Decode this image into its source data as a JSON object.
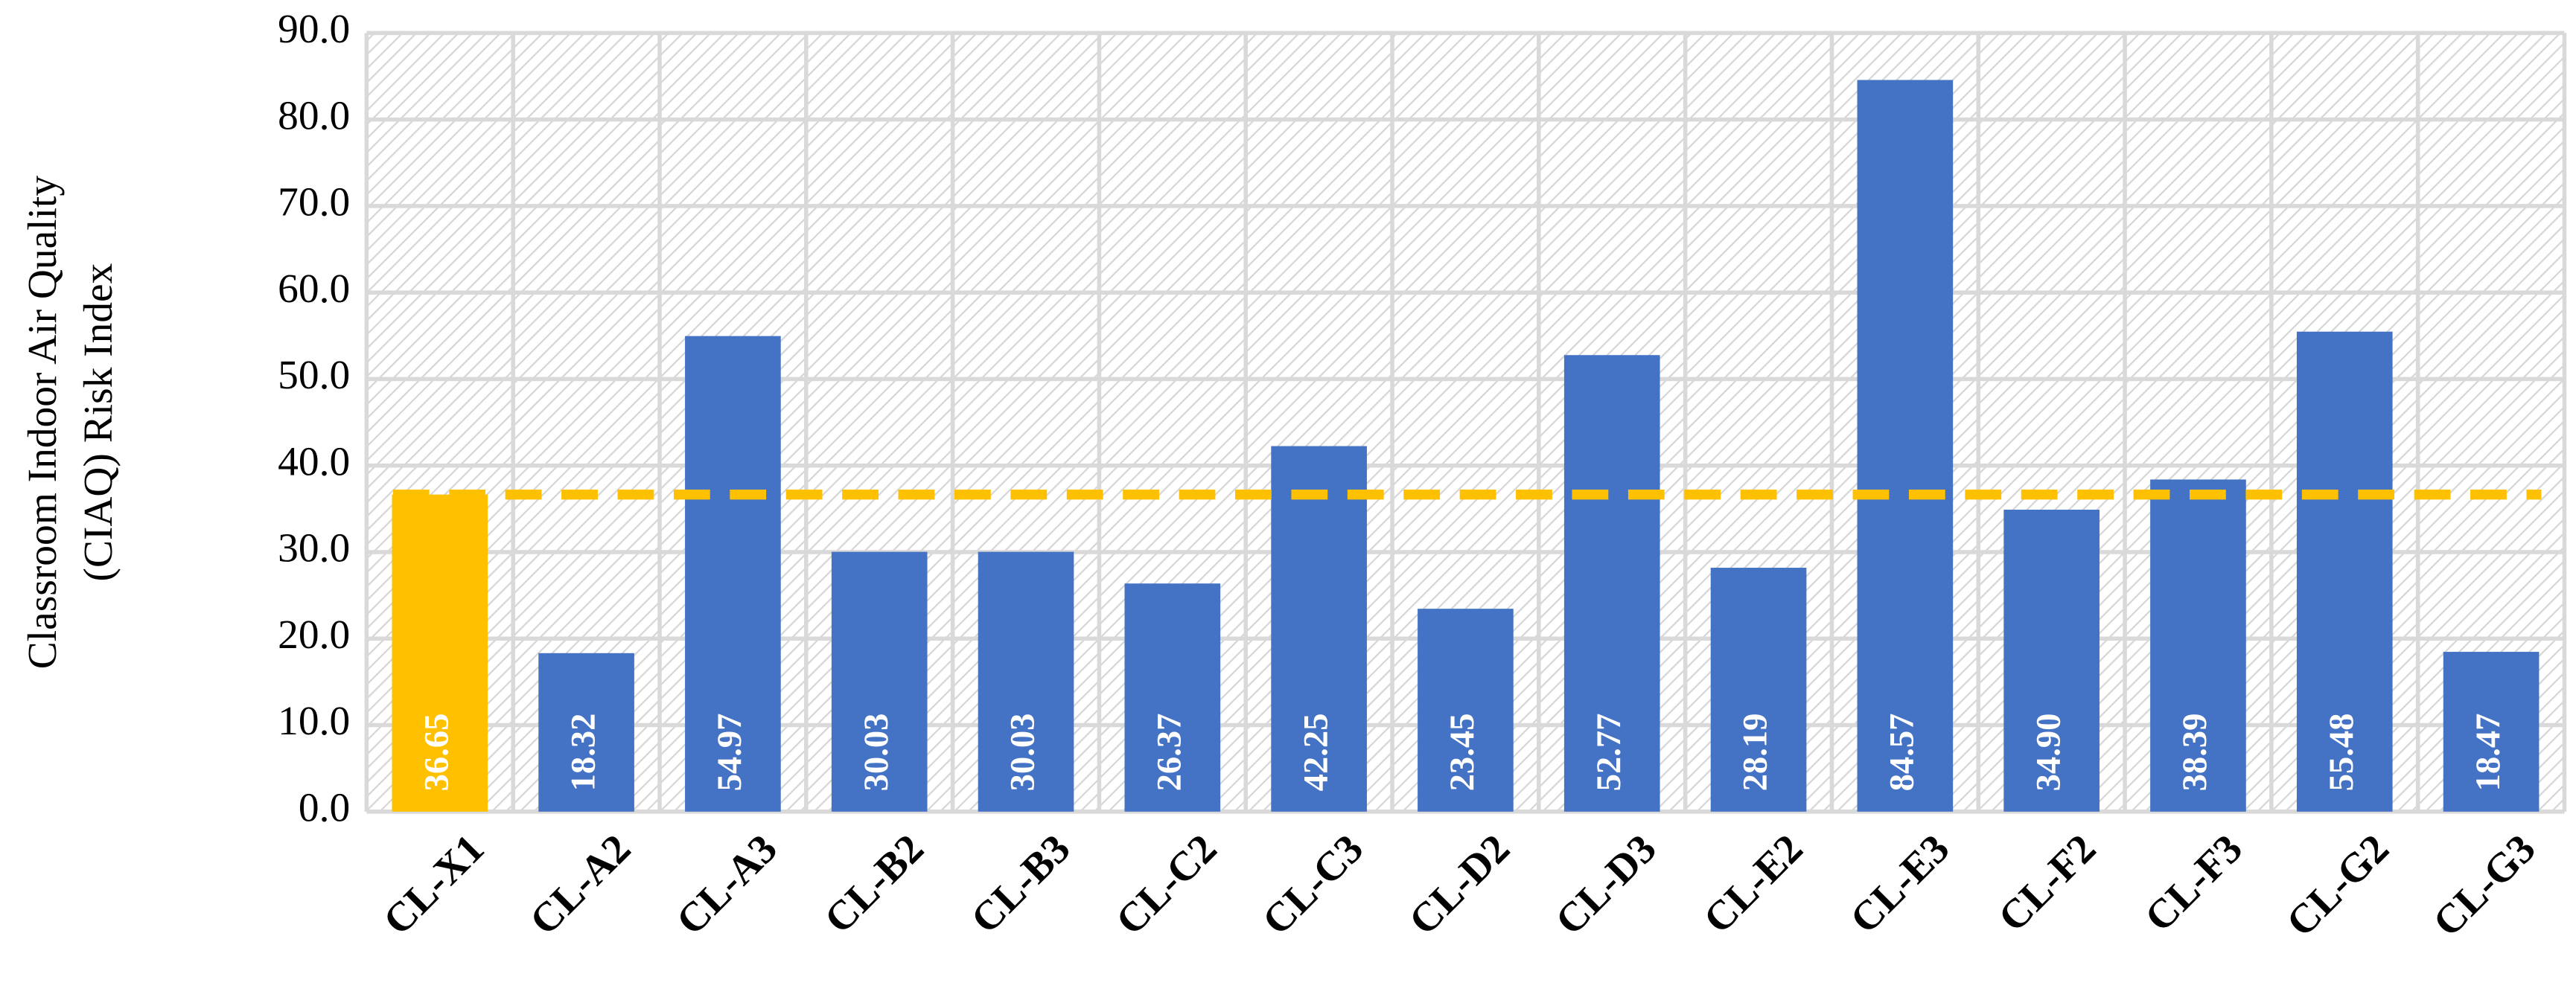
{
  "chart_data": {
    "type": "bar",
    "y_label": [
      "Classroom Indoor Air Quality",
      "(CIAQ) Risk Index"
    ],
    "categories": [
      "CL-X1",
      "CL-A2",
      "CL-A3",
      "CL-B2",
      "CL-B3",
      "CL-C2",
      "CL-C3",
      "CL-D2",
      "CL-D3",
      "CL-E2",
      "CL-E3",
      "CL-F2",
      "CL-F3",
      "CL-G2",
      "CL-G3"
    ],
    "values": [
      36.65,
      18.32,
      54.97,
      30.03,
      30.03,
      26.37,
      42.25,
      23.45,
      52.77,
      28.19,
      84.57,
      34.9,
      38.39,
      55.48,
      18.47
    ],
    "value_labels": [
      "36.65",
      "18.32",
      "54.97",
      "30.03",
      "30.03",
      "26.37",
      "42.25",
      "23.45",
      "52.77",
      "28.19",
      "84.57",
      "34.90",
      "38.39",
      "55.48",
      "18.47"
    ],
    "colors": [
      "#FFC000",
      "#4472C4",
      "#4472C4",
      "#4472C4",
      "#4472C4",
      "#4472C4",
      "#4472C4",
      "#4472C4",
      "#4472C4",
      "#4472C4",
      "#4472C4",
      "#4472C4",
      "#4472C4",
      "#4472C4",
      "#4472C4"
    ],
    "reference_line": {
      "value": 36.65,
      "color": "#FFC000"
    },
    "ylim": [
      0,
      90
    ],
    "yticks": [
      {
        "value": 0,
        "label": "0.0"
      },
      {
        "value": 10,
        "label": "10.0"
      },
      {
        "value": 20,
        "label": "20.0"
      },
      {
        "value": 30,
        "label": "30.0"
      },
      {
        "value": 40,
        "label": "40.0"
      },
      {
        "value": 50,
        "label": "50.0"
      },
      {
        "value": 60,
        "label": "60.0"
      },
      {
        "value": 70,
        "label": "70.0"
      },
      {
        "value": 80,
        "label": "80.0"
      },
      {
        "value": 90,
        "label": "90.0"
      }
    ],
    "grid": true
  }
}
